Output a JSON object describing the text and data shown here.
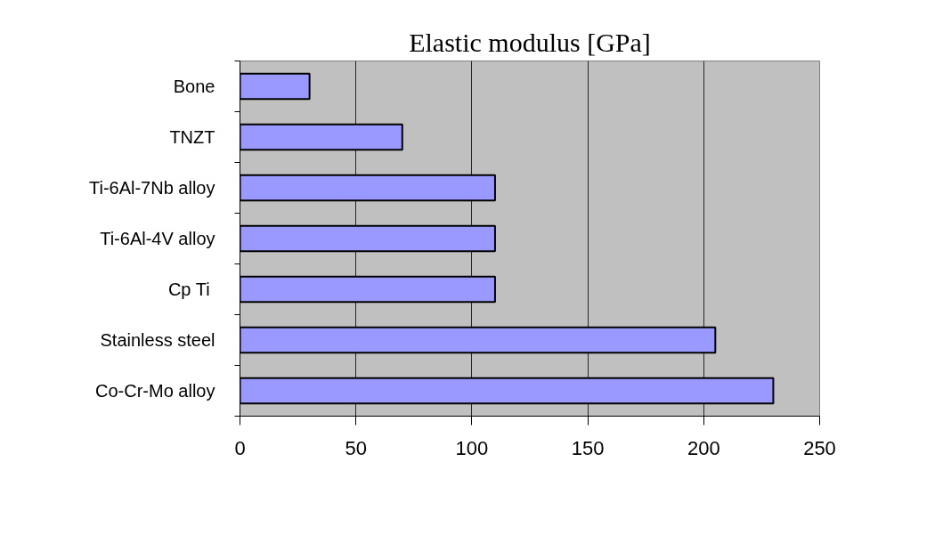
{
  "chart_data": {
    "type": "bar",
    "orientation": "horizontal",
    "title": "Elastic modulus [GPa]",
    "categories": [
      "Bone",
      "TNZT",
      "Ti-6Al-7Nb alloy",
      "Ti-6Al-4V alloy",
      "Cp  Ti",
      "Stainless steel",
      "Co-Cr-Mo alloy"
    ],
    "values": [
      30,
      70,
      110,
      110,
      110,
      205,
      230
    ],
    "color": "#9999ff",
    "xlim": [
      0,
      250
    ],
    "xticks": [
      0,
      50,
      100,
      150,
      200,
      250
    ],
    "grid": "x"
  }
}
